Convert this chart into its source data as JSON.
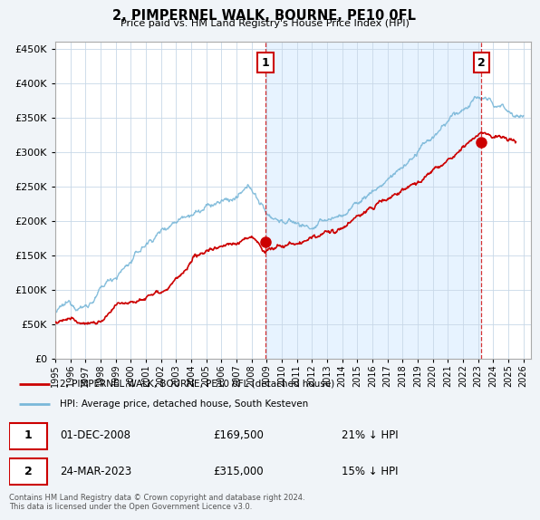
{
  "title": "2, PIMPERNEL WALK, BOURNE, PE10 0FL",
  "subtitle": "Price paid vs. HM Land Registry's House Price Index (HPI)",
  "ytick_values": [
    0,
    50000,
    100000,
    150000,
    200000,
    250000,
    300000,
    350000,
    400000,
    450000
  ],
  "ylim": [
    0,
    460000
  ],
  "xlim_start": 1995.0,
  "xlim_end": 2026.5,
  "hpi_color": "#7ab8d9",
  "price_color": "#cc0000",
  "marker1_x": 2008.92,
  "marker1_y": 169500,
  "marker2_x": 2023.23,
  "marker2_y": 315000,
  "annotation1": "1",
  "annotation2": "2",
  "legend_line1": "2, PIMPERNEL WALK, BOURNE, PE10 0FL (detached house)",
  "legend_line2": "HPI: Average price, detached house, South Kesteven",
  "table_row1_date": "01-DEC-2008",
  "table_row1_price": "£169,500",
  "table_row1_hpi": "21% ↓ HPI",
  "table_row2_date": "24-MAR-2023",
  "table_row2_price": "£315,000",
  "table_row2_hpi": "15% ↓ HPI",
  "footer": "Contains HM Land Registry data © Crown copyright and database right 2024.\nThis data is licensed under the Open Government Licence v3.0.",
  "background_color": "#f0f4f8",
  "plot_bg_color": "#ffffff",
  "highlight_color": "#ddeeff",
  "grid_color": "#c8d8e8"
}
